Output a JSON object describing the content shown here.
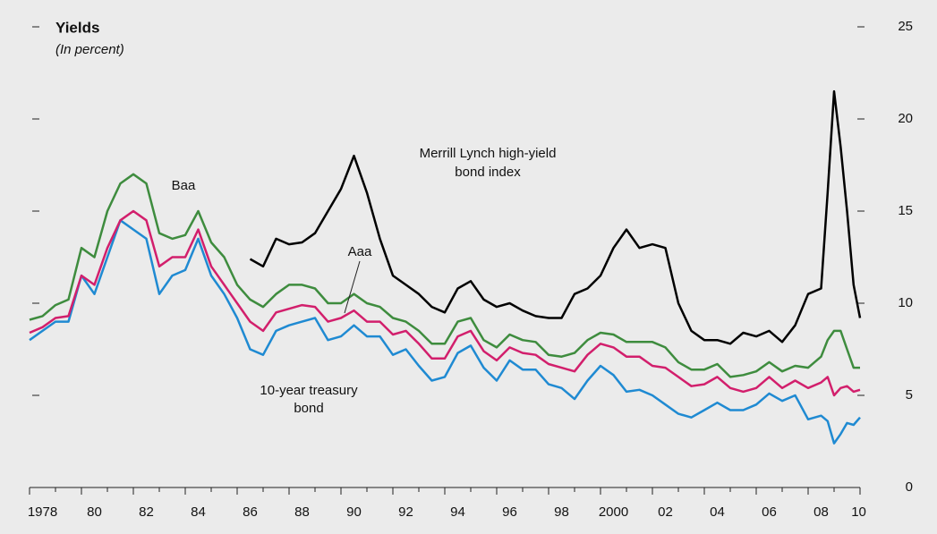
{
  "chart_data": {
    "type": "line",
    "title": "Yields",
    "subtitle": "(In percent)",
    "x": [
      1978,
      1978.5,
      1979,
      1979.5,
      1980,
      1980.5,
      1981,
      1981.5,
      1982,
      1982.5,
      1983,
      1983.5,
      1984,
      1984.5,
      1985,
      1985.5,
      1986,
      1986.5,
      1987,
      1987.5,
      1988,
      1988.5,
      1989,
      1989.5,
      1990,
      1990.5,
      1991,
      1991.5,
      1992,
      1992.5,
      1993,
      1993.5,
      1994,
      1994.5,
      1995,
      1995.5,
      1996,
      1996.5,
      1997,
      1997.5,
      1998,
      1998.5,
      1999,
      1999.5,
      2000,
      2000.5,
      2001,
      2001.5,
      2002,
      2002.5,
      2003,
      2003.5,
      2004,
      2004.5,
      2005,
      2005.5,
      2006,
      2006.5,
      2007,
      2007.5,
      2008,
      2008.5,
      2008.75,
      2009,
      2009.25,
      2009.5,
      2009.75,
      2010
    ],
    "series": [
      {
        "name": [
          "10-year treasury",
          "bond"
        ],
        "color": "#1f8ad2",
        "values": [
          8.0,
          8.5,
          9.0,
          9.0,
          11.5,
          10.5,
          12.5,
          14.5,
          14.0,
          13.5,
          10.5,
          11.5,
          11.8,
          13.5,
          11.5,
          10.5,
          9.2,
          7.5,
          7.2,
          8.5,
          8.8,
          9.0,
          9.2,
          8.0,
          8.2,
          8.8,
          8.2,
          8.2,
          7.2,
          7.5,
          6.6,
          5.8,
          6.0,
          7.3,
          7.7,
          6.5,
          5.8,
          6.9,
          6.4,
          6.4,
          5.6,
          5.4,
          4.8,
          5.8,
          6.6,
          6.1,
          5.2,
          5.3,
          5.0,
          4.5,
          4.0,
          3.8,
          4.2,
          4.6,
          4.2,
          4.2,
          4.5,
          5.1,
          4.7,
          5.0,
          3.7,
          3.9,
          3.6,
          2.4,
          2.9,
          3.5,
          3.4,
          3.8
        ]
      },
      {
        "name": "Aaa",
        "color": "#d21f6c",
        "values": [
          8.4,
          8.7,
          9.2,
          9.3,
          11.5,
          11.0,
          13.0,
          14.5,
          15.0,
          14.5,
          12.0,
          12.5,
          12.5,
          14.0,
          12.0,
          11.0,
          10.0,
          9.0,
          8.5,
          9.5,
          9.7,
          9.9,
          9.8,
          9.0,
          9.2,
          9.6,
          9.0,
          9.0,
          8.3,
          8.5,
          7.8,
          7.0,
          7.0,
          8.2,
          8.5,
          7.4,
          6.9,
          7.6,
          7.3,
          7.2,
          6.7,
          6.5,
          6.3,
          7.2,
          7.8,
          7.6,
          7.1,
          7.1,
          6.6,
          6.5,
          6.0,
          5.5,
          5.6,
          6.0,
          5.4,
          5.2,
          5.4,
          6.0,
          5.4,
          5.8,
          5.4,
          5.7,
          6.0,
          5.0,
          5.4,
          5.5,
          5.2,
          5.3
        ]
      },
      {
        "name": "Baa",
        "color": "#3e8c3e",
        "values": [
          9.1,
          9.3,
          9.9,
          10.2,
          13.0,
          12.5,
          15.0,
          16.5,
          17.0,
          16.5,
          13.8,
          13.5,
          13.7,
          15.0,
          13.3,
          12.5,
          11.0,
          10.2,
          9.8,
          10.5,
          11.0,
          11.0,
          10.8,
          10.0,
          10.0,
          10.5,
          10.0,
          9.8,
          9.2,
          9.0,
          8.5,
          7.8,
          7.8,
          9.0,
          9.2,
          8.0,
          7.6,
          8.3,
          8.0,
          7.9,
          7.2,
          7.1,
          7.3,
          8.0,
          8.4,
          8.3,
          7.9,
          7.9,
          7.9,
          7.6,
          6.8,
          6.4,
          6.4,
          6.7,
          6.0,
          6.1,
          6.3,
          6.8,
          6.3,
          6.6,
          6.5,
          7.1,
          8.0,
          8.5,
          8.5,
          7.5,
          6.5,
          6.5
        ]
      },
      {
        "name": [
          "Merrill Lynch high-yield",
          "bond index"
        ],
        "color": "#000000",
        "values": [
          null,
          null,
          null,
          null,
          null,
          null,
          null,
          null,
          null,
          null,
          null,
          null,
          null,
          null,
          null,
          null,
          null,
          12.4,
          12.0,
          13.5,
          13.2,
          13.3,
          13.8,
          15.0,
          16.2,
          18.0,
          16.0,
          13.5,
          11.5,
          11.0,
          10.5,
          9.8,
          9.5,
          10.8,
          11.2,
          10.2,
          9.8,
          10.0,
          9.6,
          9.3,
          9.2,
          9.2,
          10.5,
          10.8,
          11.5,
          13.0,
          14.0,
          13.0,
          13.2,
          13.0,
          10.0,
          8.5,
          8.0,
          8.0,
          7.8,
          8.4,
          8.2,
          8.5,
          7.9,
          8.8,
          10.5,
          10.8,
          16.0,
          21.5,
          18.5,
          15.0,
          11.0,
          9.2
        ]
      }
    ],
    "xlim": [
      1978,
      2010
    ],
    "xticks": [
      {
        "value": 1978,
        "label": "1978"
      },
      {
        "value": 1980,
        "label": "80"
      },
      {
        "value": 1982,
        "label": "82"
      },
      {
        "value": 1984,
        "label": "84"
      },
      {
        "value": 1986,
        "label": "86"
      },
      {
        "value": 1988,
        "label": "88"
      },
      {
        "value": 1990,
        "label": "90"
      },
      {
        "value": 1992,
        "label": "92"
      },
      {
        "value": 1994,
        "label": "94"
      },
      {
        "value": 1996,
        "label": "96"
      },
      {
        "value": 1998,
        "label": "98"
      },
      {
        "value": 2000,
        "label": "2000"
      },
      {
        "value": 2002,
        "label": "02"
      },
      {
        "value": 2004,
        "label": "04"
      },
      {
        "value": 2006,
        "label": "06"
      },
      {
        "value": 2008,
        "label": "08"
      },
      {
        "value": 2010,
        "label": "10"
      }
    ],
    "xticks_minor": [
      1979,
      1981,
      1983,
      1985,
      1987,
      1989,
      1991,
      1993,
      1995,
      1997,
      1999,
      2001,
      2003,
      2005,
      2007,
      2009
    ],
    "ylim": [
      0,
      25
    ],
    "yticks": [
      0,
      5,
      10,
      15,
      20,
      25
    ]
  }
}
